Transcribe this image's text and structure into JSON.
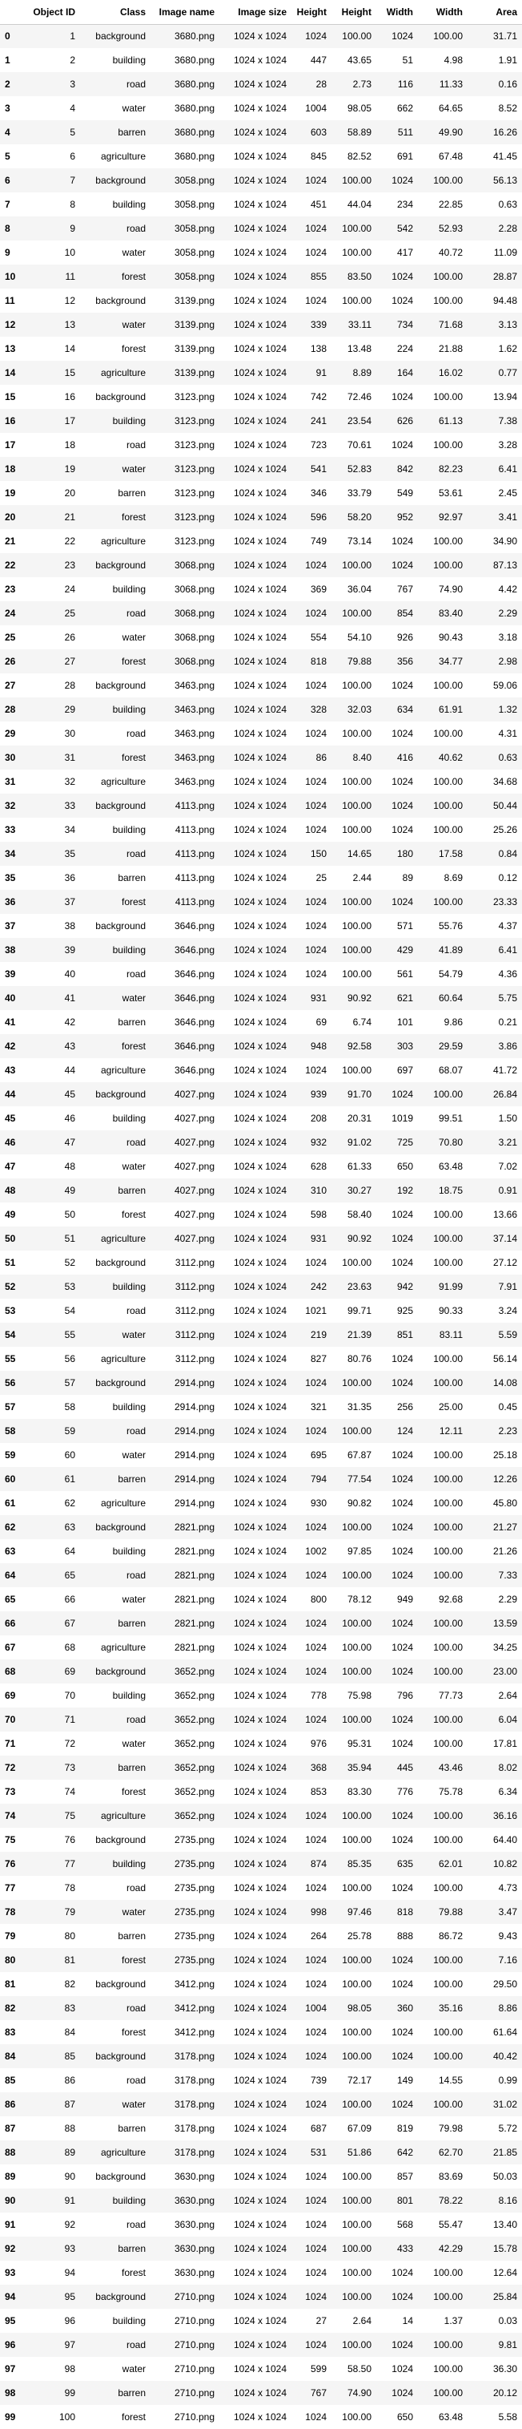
{
  "headers": [
    "",
    "Object ID",
    "Class",
    "Image name",
    "Image size",
    "Height",
    "Height",
    "Width",
    "Width",
    "Area"
  ],
  "rows": [
    [
      "0",
      "1",
      "background",
      "3680.png",
      "1024 x 1024",
      "1024",
      "100.00",
      "1024",
      "100.00",
      "31.71"
    ],
    [
      "1",
      "2",
      "building",
      "3680.png",
      "1024 x 1024",
      "447",
      "43.65",
      "51",
      "4.98",
      "1.91"
    ],
    [
      "2",
      "3",
      "road",
      "3680.png",
      "1024 x 1024",
      "28",
      "2.73",
      "116",
      "11.33",
      "0.16"
    ],
    [
      "3",
      "4",
      "water",
      "3680.png",
      "1024 x 1024",
      "1004",
      "98.05",
      "662",
      "64.65",
      "8.52"
    ],
    [
      "4",
      "5",
      "barren",
      "3680.png",
      "1024 x 1024",
      "603",
      "58.89",
      "511",
      "49.90",
      "16.26"
    ],
    [
      "5",
      "6",
      "agriculture",
      "3680.png",
      "1024 x 1024",
      "845",
      "82.52",
      "691",
      "67.48",
      "41.45"
    ],
    [
      "6",
      "7",
      "background",
      "3058.png",
      "1024 x 1024",
      "1024",
      "100.00",
      "1024",
      "100.00",
      "56.13"
    ],
    [
      "7",
      "8",
      "building",
      "3058.png",
      "1024 x 1024",
      "451",
      "44.04",
      "234",
      "22.85",
      "0.63"
    ],
    [
      "8",
      "9",
      "road",
      "3058.png",
      "1024 x 1024",
      "1024",
      "100.00",
      "542",
      "52.93",
      "2.28"
    ],
    [
      "9",
      "10",
      "water",
      "3058.png",
      "1024 x 1024",
      "1024",
      "100.00",
      "417",
      "40.72",
      "11.09"
    ],
    [
      "10",
      "11",
      "forest",
      "3058.png",
      "1024 x 1024",
      "855",
      "83.50",
      "1024",
      "100.00",
      "28.87"
    ],
    [
      "11",
      "12",
      "background",
      "3139.png",
      "1024 x 1024",
      "1024",
      "100.00",
      "1024",
      "100.00",
      "94.48"
    ],
    [
      "12",
      "13",
      "water",
      "3139.png",
      "1024 x 1024",
      "339",
      "33.11",
      "734",
      "71.68",
      "3.13"
    ],
    [
      "13",
      "14",
      "forest",
      "3139.png",
      "1024 x 1024",
      "138",
      "13.48",
      "224",
      "21.88",
      "1.62"
    ],
    [
      "14",
      "15",
      "agriculture",
      "3139.png",
      "1024 x 1024",
      "91",
      "8.89",
      "164",
      "16.02",
      "0.77"
    ],
    [
      "15",
      "16",
      "background",
      "3123.png",
      "1024 x 1024",
      "742",
      "72.46",
      "1024",
      "100.00",
      "13.94"
    ],
    [
      "16",
      "17",
      "building",
      "3123.png",
      "1024 x 1024",
      "241",
      "23.54",
      "626",
      "61.13",
      "7.38"
    ],
    [
      "17",
      "18",
      "road",
      "3123.png",
      "1024 x 1024",
      "723",
      "70.61",
      "1024",
      "100.00",
      "3.28"
    ],
    [
      "18",
      "19",
      "water",
      "3123.png",
      "1024 x 1024",
      "541",
      "52.83",
      "842",
      "82.23",
      "6.41"
    ],
    [
      "19",
      "20",
      "barren",
      "3123.png",
      "1024 x 1024",
      "346",
      "33.79",
      "549",
      "53.61",
      "2.45"
    ],
    [
      "20",
      "21",
      "forest",
      "3123.png",
      "1024 x 1024",
      "596",
      "58.20",
      "952",
      "92.97",
      "3.41"
    ],
    [
      "21",
      "22",
      "agriculture",
      "3123.png",
      "1024 x 1024",
      "749",
      "73.14",
      "1024",
      "100.00",
      "34.90"
    ],
    [
      "22",
      "23",
      "background",
      "3068.png",
      "1024 x 1024",
      "1024",
      "100.00",
      "1024",
      "100.00",
      "87.13"
    ],
    [
      "23",
      "24",
      "building",
      "3068.png",
      "1024 x 1024",
      "369",
      "36.04",
      "767",
      "74.90",
      "4.42"
    ],
    [
      "24",
      "25",
      "road",
      "3068.png",
      "1024 x 1024",
      "1024",
      "100.00",
      "854",
      "83.40",
      "2.29"
    ],
    [
      "25",
      "26",
      "water",
      "3068.png",
      "1024 x 1024",
      "554",
      "54.10",
      "926",
      "90.43",
      "3.18"
    ],
    [
      "26",
      "27",
      "forest",
      "3068.png",
      "1024 x 1024",
      "818",
      "79.88",
      "356",
      "34.77",
      "2.98"
    ],
    [
      "27",
      "28",
      "background",
      "3463.png",
      "1024 x 1024",
      "1024",
      "100.00",
      "1024",
      "100.00",
      "59.06"
    ],
    [
      "28",
      "29",
      "building",
      "3463.png",
      "1024 x 1024",
      "328",
      "32.03",
      "634",
      "61.91",
      "1.32"
    ],
    [
      "29",
      "30",
      "road",
      "3463.png",
      "1024 x 1024",
      "1024",
      "100.00",
      "1024",
      "100.00",
      "4.31"
    ],
    [
      "30",
      "31",
      "forest",
      "3463.png",
      "1024 x 1024",
      "86",
      "8.40",
      "416",
      "40.62",
      "0.63"
    ],
    [
      "31",
      "32",
      "agriculture",
      "3463.png",
      "1024 x 1024",
      "1024",
      "100.00",
      "1024",
      "100.00",
      "34.68"
    ],
    [
      "32",
      "33",
      "background",
      "4113.png",
      "1024 x 1024",
      "1024",
      "100.00",
      "1024",
      "100.00",
      "50.44"
    ],
    [
      "33",
      "34",
      "building",
      "4113.png",
      "1024 x 1024",
      "1024",
      "100.00",
      "1024",
      "100.00",
      "25.26"
    ],
    [
      "34",
      "35",
      "road",
      "4113.png",
      "1024 x 1024",
      "150",
      "14.65",
      "180",
      "17.58",
      "0.84"
    ],
    [
      "35",
      "36",
      "barren",
      "4113.png",
      "1024 x 1024",
      "25",
      "2.44",
      "89",
      "8.69",
      "0.12"
    ],
    [
      "36",
      "37",
      "forest",
      "4113.png",
      "1024 x 1024",
      "1024",
      "100.00",
      "1024",
      "100.00",
      "23.33"
    ],
    [
      "37",
      "38",
      "background",
      "3646.png",
      "1024 x 1024",
      "1024",
      "100.00",
      "571",
      "55.76",
      "4.37"
    ],
    [
      "38",
      "39",
      "building",
      "3646.png",
      "1024 x 1024",
      "1024",
      "100.00",
      "429",
      "41.89",
      "6.41"
    ],
    [
      "39",
      "40",
      "road",
      "3646.png",
      "1024 x 1024",
      "1024",
      "100.00",
      "561",
      "54.79",
      "4.36"
    ],
    [
      "40",
      "41",
      "water",
      "3646.png",
      "1024 x 1024",
      "931",
      "90.92",
      "621",
      "60.64",
      "5.75"
    ],
    [
      "41",
      "42",
      "barren",
      "3646.png",
      "1024 x 1024",
      "69",
      "6.74",
      "101",
      "9.86",
      "0.21"
    ],
    [
      "42",
      "43",
      "forest",
      "3646.png",
      "1024 x 1024",
      "948",
      "92.58",
      "303",
      "29.59",
      "3.86"
    ],
    [
      "43",
      "44",
      "agriculture",
      "3646.png",
      "1024 x 1024",
      "1024",
      "100.00",
      "697",
      "68.07",
      "41.72"
    ],
    [
      "44",
      "45",
      "background",
      "4027.png",
      "1024 x 1024",
      "939",
      "91.70",
      "1024",
      "100.00",
      "26.84"
    ],
    [
      "45",
      "46",
      "building",
      "4027.png",
      "1024 x 1024",
      "208",
      "20.31",
      "1019",
      "99.51",
      "1.50"
    ],
    [
      "46",
      "47",
      "road",
      "4027.png",
      "1024 x 1024",
      "932",
      "91.02",
      "725",
      "70.80",
      "3.21"
    ],
    [
      "47",
      "48",
      "water",
      "4027.png",
      "1024 x 1024",
      "628",
      "61.33",
      "650",
      "63.48",
      "7.02"
    ],
    [
      "48",
      "49",
      "barren",
      "4027.png",
      "1024 x 1024",
      "310",
      "30.27",
      "192",
      "18.75",
      "0.91"
    ],
    [
      "49",
      "50",
      "forest",
      "4027.png",
      "1024 x 1024",
      "598",
      "58.40",
      "1024",
      "100.00",
      "13.66"
    ],
    [
      "50",
      "51",
      "agriculture",
      "4027.png",
      "1024 x 1024",
      "931",
      "90.92",
      "1024",
      "100.00",
      "37.14"
    ],
    [
      "51",
      "52",
      "background",
      "3112.png",
      "1024 x 1024",
      "1024",
      "100.00",
      "1024",
      "100.00",
      "27.12"
    ],
    [
      "52",
      "53",
      "building",
      "3112.png",
      "1024 x 1024",
      "242",
      "23.63",
      "942",
      "91.99",
      "7.91"
    ],
    [
      "53",
      "54",
      "road",
      "3112.png",
      "1024 x 1024",
      "1021",
      "99.71",
      "925",
      "90.33",
      "3.24"
    ],
    [
      "54",
      "55",
      "water",
      "3112.png",
      "1024 x 1024",
      "219",
      "21.39",
      "851",
      "83.11",
      "5.59"
    ],
    [
      "55",
      "56",
      "agriculture",
      "3112.png",
      "1024 x 1024",
      "827",
      "80.76",
      "1024",
      "100.00",
      "56.14"
    ],
    [
      "56",
      "57",
      "background",
      "2914.png",
      "1024 x 1024",
      "1024",
      "100.00",
      "1024",
      "100.00",
      "14.08"
    ],
    [
      "57",
      "58",
      "building",
      "2914.png",
      "1024 x 1024",
      "321",
      "31.35",
      "256",
      "25.00",
      "0.45"
    ],
    [
      "58",
      "59",
      "road",
      "2914.png",
      "1024 x 1024",
      "1024",
      "100.00",
      "124",
      "12.11",
      "2.23"
    ],
    [
      "59",
      "60",
      "water",
      "2914.png",
      "1024 x 1024",
      "695",
      "67.87",
      "1024",
      "100.00",
      "25.18"
    ],
    [
      "60",
      "61",
      "barren",
      "2914.png",
      "1024 x 1024",
      "794",
      "77.54",
      "1024",
      "100.00",
      "12.26"
    ],
    [
      "61",
      "62",
      "agriculture",
      "2914.png",
      "1024 x 1024",
      "930",
      "90.82",
      "1024",
      "100.00",
      "45.80"
    ],
    [
      "62",
      "63",
      "background",
      "2821.png",
      "1024 x 1024",
      "1024",
      "100.00",
      "1024",
      "100.00",
      "21.27"
    ],
    [
      "63",
      "64",
      "building",
      "2821.png",
      "1024 x 1024",
      "1002",
      "97.85",
      "1024",
      "100.00",
      "21.26"
    ],
    [
      "64",
      "65",
      "road",
      "2821.png",
      "1024 x 1024",
      "1024",
      "100.00",
      "1024",
      "100.00",
      "7.33"
    ],
    [
      "65",
      "66",
      "water",
      "2821.png",
      "1024 x 1024",
      "800",
      "78.12",
      "949",
      "92.68",
      "2.29"
    ],
    [
      "66",
      "67",
      "barren",
      "2821.png",
      "1024 x 1024",
      "1024",
      "100.00",
      "1024",
      "100.00",
      "13.59"
    ],
    [
      "67",
      "68",
      "agriculture",
      "2821.png",
      "1024 x 1024",
      "1024",
      "100.00",
      "1024",
      "100.00",
      "34.25"
    ],
    [
      "68",
      "69",
      "background",
      "3652.png",
      "1024 x 1024",
      "1024",
      "100.00",
      "1024",
      "100.00",
      "23.00"
    ],
    [
      "69",
      "70",
      "building",
      "3652.png",
      "1024 x 1024",
      "778",
      "75.98",
      "796",
      "77.73",
      "2.64"
    ],
    [
      "70",
      "71",
      "road",
      "3652.png",
      "1024 x 1024",
      "1024",
      "100.00",
      "1024",
      "100.00",
      "6.04"
    ],
    [
      "71",
      "72",
      "water",
      "3652.png",
      "1024 x 1024",
      "976",
      "95.31",
      "1024",
      "100.00",
      "17.81"
    ],
    [
      "72",
      "73",
      "barren",
      "3652.png",
      "1024 x 1024",
      "368",
      "35.94",
      "445",
      "43.46",
      "8.02"
    ],
    [
      "73",
      "74",
      "forest",
      "3652.png",
      "1024 x 1024",
      "853",
      "83.30",
      "776",
      "75.78",
      "6.34"
    ],
    [
      "74",
      "75",
      "agriculture",
      "3652.png",
      "1024 x 1024",
      "1024",
      "100.00",
      "1024",
      "100.00",
      "36.16"
    ],
    [
      "75",
      "76",
      "background",
      "2735.png",
      "1024 x 1024",
      "1024",
      "100.00",
      "1024",
      "100.00",
      "64.40"
    ],
    [
      "76",
      "77",
      "building",
      "2735.png",
      "1024 x 1024",
      "874",
      "85.35",
      "635",
      "62.01",
      "10.82"
    ],
    [
      "77",
      "78",
      "road",
      "2735.png",
      "1024 x 1024",
      "1024",
      "100.00",
      "1024",
      "100.00",
      "4.73"
    ],
    [
      "78",
      "79",
      "water",
      "2735.png",
      "1024 x 1024",
      "998",
      "97.46",
      "818",
      "79.88",
      "3.47"
    ],
    [
      "79",
      "80",
      "barren",
      "2735.png",
      "1024 x 1024",
      "264",
      "25.78",
      "888",
      "86.72",
      "9.43"
    ],
    [
      "80",
      "81",
      "forest",
      "2735.png",
      "1024 x 1024",
      "1024",
      "100.00",
      "1024",
      "100.00",
      "7.16"
    ],
    [
      "81",
      "82",
      "background",
      "3412.png",
      "1024 x 1024",
      "1024",
      "100.00",
      "1024",
      "100.00",
      "29.50"
    ],
    [
      "82",
      "83",
      "road",
      "3412.png",
      "1024 x 1024",
      "1004",
      "98.05",
      "360",
      "35.16",
      "8.86"
    ],
    [
      "83",
      "84",
      "forest",
      "3412.png",
      "1024 x 1024",
      "1024",
      "100.00",
      "1024",
      "100.00",
      "61.64"
    ],
    [
      "84",
      "85",
      "background",
      "3178.png",
      "1024 x 1024",
      "1024",
      "100.00",
      "1024",
      "100.00",
      "40.42"
    ],
    [
      "85",
      "86",
      "road",
      "3178.png",
      "1024 x 1024",
      "739",
      "72.17",
      "149",
      "14.55",
      "0.99"
    ],
    [
      "86",
      "87",
      "water",
      "3178.png",
      "1024 x 1024",
      "1024",
      "100.00",
      "1024",
      "100.00",
      "31.02"
    ],
    [
      "87",
      "88",
      "barren",
      "3178.png",
      "1024 x 1024",
      "687",
      "67.09",
      "819",
      "79.98",
      "5.72"
    ],
    [
      "88",
      "89",
      "agriculture",
      "3178.png",
      "1024 x 1024",
      "531",
      "51.86",
      "642",
      "62.70",
      "21.85"
    ],
    [
      "89",
      "90",
      "background",
      "3630.png",
      "1024 x 1024",
      "1024",
      "100.00",
      "857",
      "83.69",
      "50.03"
    ],
    [
      "90",
      "91",
      "building",
      "3630.png",
      "1024 x 1024",
      "1024",
      "100.00",
      "801",
      "78.22",
      "8.16"
    ],
    [
      "91",
      "92",
      "road",
      "3630.png",
      "1024 x 1024",
      "1024",
      "100.00",
      "568",
      "55.47",
      "13.40"
    ],
    [
      "92",
      "93",
      "barren",
      "3630.png",
      "1024 x 1024",
      "1024",
      "100.00",
      "433",
      "42.29",
      "15.78"
    ],
    [
      "93",
      "94",
      "forest",
      "3630.png",
      "1024 x 1024",
      "1024",
      "100.00",
      "1024",
      "100.00",
      "12.64"
    ],
    [
      "94",
      "95",
      "background",
      "2710.png",
      "1024 x 1024",
      "1024",
      "100.00",
      "1024",
      "100.00",
      "25.84"
    ],
    [
      "95",
      "96",
      "building",
      "2710.png",
      "1024 x 1024",
      "27",
      "2.64",
      "14",
      "1.37",
      "0.03"
    ],
    [
      "96",
      "97",
      "road",
      "2710.png",
      "1024 x 1024",
      "1024",
      "100.00",
      "1024",
      "100.00",
      "9.81"
    ],
    [
      "97",
      "98",
      "water",
      "2710.png",
      "1024 x 1024",
      "599",
      "58.50",
      "1024",
      "100.00",
      "36.30"
    ],
    [
      "98",
      "99",
      "barren",
      "2710.png",
      "1024 x 1024",
      "767",
      "74.90",
      "1024",
      "100.00",
      "20.12"
    ],
    [
      "99",
      "100",
      "forest",
      "2710.png",
      "1024 x 1024",
      "1024",
      "100.00",
      "650",
      "63.48",
      "5.58"
    ]
  ]
}
